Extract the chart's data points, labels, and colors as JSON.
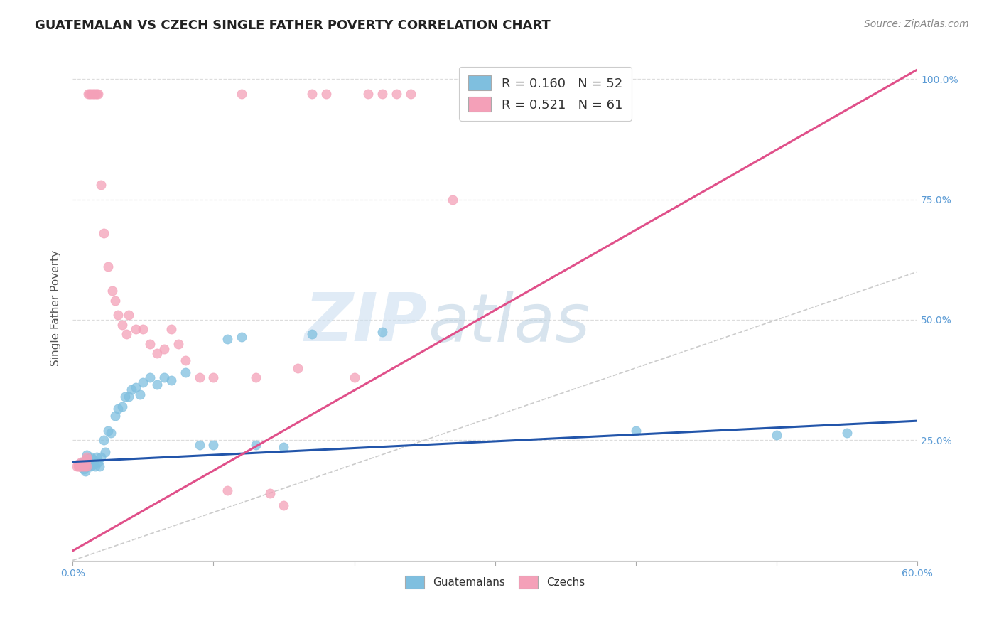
{
  "title": "GUATEMALAN VS CZECH SINGLE FATHER POVERTY CORRELATION CHART",
  "source": "Source: ZipAtlas.com",
  "ylabel": "Single Father Poverty",
  "right_yticks": [
    "100.0%",
    "75.0%",
    "50.0%",
    "25.0%"
  ],
  "right_ytick_vals": [
    1.0,
    0.75,
    0.5,
    0.25
  ],
  "xmin": 0.0,
  "xmax": 0.6,
  "ymin": 0.0,
  "ymax": 1.05,
  "legend_blue_R": "0.160",
  "legend_blue_N": "52",
  "legend_pink_R": "0.521",
  "legend_pink_N": "61",
  "blue_color": "#7fbfdf",
  "pink_color": "#f4a0b8",
  "blue_line_color": "#2255aa",
  "pink_line_color": "#e0508a",
  "diag_line_color": "#cccccc",
  "watermark_zip": "ZIP",
  "watermark_atlas": "atlas",
  "background_color": "#ffffff",
  "grid_color": "#dddddd",
  "guatemalan_x": [
    0.005,
    0.006,
    0.007,
    0.007,
    0.008,
    0.008,
    0.009,
    0.009,
    0.009,
    0.01,
    0.01,
    0.01,
    0.011,
    0.012,
    0.013,
    0.013,
    0.014,
    0.015,
    0.016,
    0.017,
    0.018,
    0.019,
    0.02,
    0.022,
    0.023,
    0.025,
    0.027,
    0.03,
    0.032,
    0.035,
    0.037,
    0.04,
    0.042,
    0.045,
    0.048,
    0.05,
    0.055,
    0.06,
    0.065,
    0.07,
    0.08,
    0.09,
    0.1,
    0.11,
    0.12,
    0.13,
    0.15,
    0.17,
    0.22,
    0.4,
    0.5,
    0.55
  ],
  "guatemalan_y": [
    0.195,
    0.2,
    0.195,
    0.205,
    0.19,
    0.2,
    0.195,
    0.185,
    0.205,
    0.21,
    0.195,
    0.22,
    0.195,
    0.2,
    0.215,
    0.195,
    0.21,
    0.2,
    0.195,
    0.215,
    0.205,
    0.195,
    0.215,
    0.25,
    0.225,
    0.27,
    0.265,
    0.3,
    0.315,
    0.32,
    0.34,
    0.34,
    0.355,
    0.36,
    0.345,
    0.37,
    0.38,
    0.365,
    0.38,
    0.375,
    0.39,
    0.24,
    0.24,
    0.46,
    0.465,
    0.24,
    0.235,
    0.47,
    0.475,
    0.27,
    0.26,
    0.265
  ],
  "czech_x": [
    0.003,
    0.004,
    0.004,
    0.005,
    0.005,
    0.005,
    0.006,
    0.006,
    0.007,
    0.007,
    0.008,
    0.008,
    0.008,
    0.009,
    0.009,
    0.01,
    0.01,
    0.01,
    0.011,
    0.012,
    0.013,
    0.014,
    0.015,
    0.016,
    0.017,
    0.018,
    0.02,
    0.022,
    0.025,
    0.028,
    0.03,
    0.032,
    0.035,
    0.038,
    0.04,
    0.045,
    0.05,
    0.055,
    0.06,
    0.065,
    0.07,
    0.075,
    0.08,
    0.09,
    0.1,
    0.11,
    0.12,
    0.13,
    0.14,
    0.15,
    0.16,
    0.17,
    0.18,
    0.2,
    0.21,
    0.22,
    0.23,
    0.24,
    0.27,
    0.35,
    0.38
  ],
  "czech_y": [
    0.195,
    0.195,
    0.2,
    0.195,
    0.195,
    0.2,
    0.195,
    0.205,
    0.2,
    0.195,
    0.195,
    0.2,
    0.205,
    0.2,
    0.195,
    0.195,
    0.215,
    0.21,
    0.97,
    0.97,
    0.97,
    0.97,
    0.97,
    0.97,
    0.97,
    0.97,
    0.78,
    0.68,
    0.61,
    0.56,
    0.54,
    0.51,
    0.49,
    0.47,
    0.51,
    0.48,
    0.48,
    0.45,
    0.43,
    0.44,
    0.48,
    0.45,
    0.415,
    0.38,
    0.38,
    0.145,
    0.97,
    0.38,
    0.14,
    0.115,
    0.4,
    0.97,
    0.97,
    0.38,
    0.97,
    0.97,
    0.97,
    0.97,
    0.75,
    0.97,
    0.97
  ],
  "blue_line_x": [
    0.0,
    0.6
  ],
  "blue_line_y": [
    0.205,
    0.29
  ],
  "pink_line_x": [
    0.0,
    0.6
  ],
  "pink_line_y": [
    0.02,
    1.02
  ]
}
